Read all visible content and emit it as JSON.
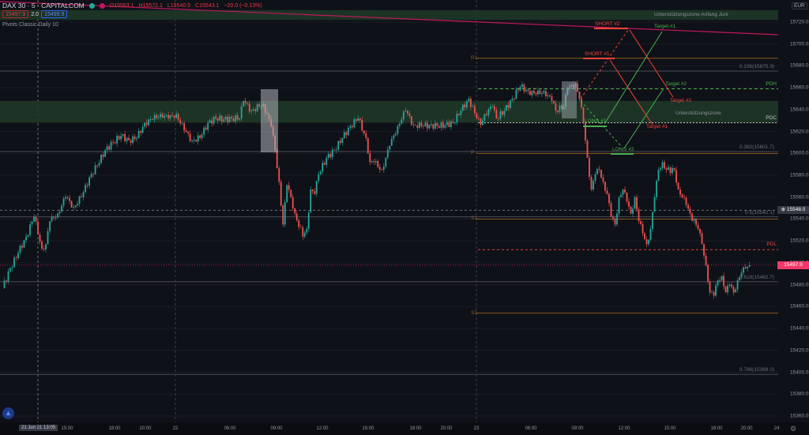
{
  "header": {
    "symbol": "DAX 30 · 5 · CAPITALCOM",
    "open": "O15563.1",
    "high": "H15572.1",
    "low": "L15540.5",
    "close": "C15543.1",
    "change": "−20.0 (−0.13%)",
    "sell_price": "15497.9",
    "spread": "2.0",
    "buy_price": "15499.9",
    "indicator": "Pivots Classic Daily 10",
    "currency": "EUR"
  },
  "colors": {
    "up": "#26a69a",
    "down": "#ef5350",
    "zone": "#1f3a28",
    "pivot": "#8a5a1c",
    "fib": "#4a4d57",
    "trendline": "#c2185b",
    "price": "#f23869",
    "long": "#4caf50",
    "short": "#f44336"
  },
  "chart_data": {
    "type": "candlestick",
    "ylim": [
      15350,
      15740
    ],
    "y_ticks": [
      "15720.0",
      "15700.0",
      "15680.0",
      "15660.0",
      "15640.0",
      "15620.0",
      "15600.0",
      "15580.0",
      "15560.0",
      "15540.0",
      "15520.0",
      "15500.0",
      "15480.0",
      "15460.0",
      "15440.0",
      "15420.0",
      "15400.0",
      "15380.0",
      "15360.0"
    ],
    "x_ticks": [
      "15:00",
      "18:00",
      "20:00",
      "22",
      "06:00",
      "09:00",
      "12:00",
      "15:00",
      "18:00",
      "20:00",
      "23",
      "06:00",
      "09:00",
      "12:00",
      "15:00",
      "18:00",
      "20:00",
      "24"
    ],
    "crosshair": {
      "time": "21 Jun 21  13:05",
      "price": "15548.0"
    },
    "last_price": "15497.9",
    "closes": [
      [
        0,
        15477
      ],
      [
        2,
        15495
      ],
      [
        4,
        15509
      ],
      [
        6,
        15524
      ],
      [
        8,
        15542
      ],
      [
        10,
        15513
      ],
      [
        11,
        15517
      ],
      [
        12,
        15538
      ],
      [
        14,
        15545
      ],
      [
        16,
        15560
      ],
      [
        18,
        15551
      ],
      [
        20,
        15560
      ],
      [
        22,
        15578
      ],
      [
        24,
        15589
      ],
      [
        26,
        15603
      ],
      [
        28,
        15610
      ],
      [
        30,
        15616
      ],
      [
        32,
        15612
      ],
      [
        34,
        15614
      ],
      [
        36,
        15628
      ],
      [
        38,
        15631
      ],
      [
        40,
        15636
      ],
      [
        42,
        15632
      ],
      [
        44,
        15636
      ],
      [
        46,
        15621
      ],
      [
        48,
        15612
      ],
      [
        50,
        15614
      ],
      [
        52,
        15628
      ],
      [
        54,
        15632
      ],
      [
        56,
        15631
      ],
      [
        58,
        15632
      ],
      [
        60,
        15632
      ],
      [
        61,
        15648
      ],
      [
        63,
        15639
      ],
      [
        65,
        15643
      ],
      [
        66,
        15645
      ],
      [
        68,
        15625
      ],
      [
        69,
        15603
      ],
      [
        70,
        15574
      ],
      [
        71,
        15535
      ],
      [
        72,
        15571
      ],
      [
        73,
        15560
      ],
      [
        74,
        15545
      ],
      [
        76,
        15524
      ],
      [
        77,
        15531
      ],
      [
        78,
        15567
      ],
      [
        79,
        15563
      ],
      [
        80,
        15581
      ],
      [
        82,
        15596
      ],
      [
        84,
        15603
      ],
      [
        86,
        15614
      ],
      [
        88,
        15625
      ],
      [
        90,
        15632
      ],
      [
        92,
        15614
      ],
      [
        93,
        15592
      ],
      [
        94,
        15592
      ],
      [
        96,
        15585
      ],
      [
        98,
        15607
      ],
      [
        100,
        15625
      ],
      [
        102,
        15639
      ],
      [
        104,
        15626
      ],
      [
        106,
        15625
      ],
      [
        108,
        15626
      ],
      [
        110,
        15625
      ],
      [
        112,
        15626
      ],
      [
        114,
        15628
      ],
      [
        116,
        15639
      ],
      [
        118,
        15650
      ],
      [
        120,
        15632
      ],
      [
        121,
        15626
      ],
      [
        122,
        15636
      ],
      [
        124,
        15643
      ],
      [
        125,
        15632
      ],
      [
        127,
        15639
      ],
      [
        129,
        15650
      ],
      [
        131,
        15661
      ],
      [
        133,
        15657
      ],
      [
        135,
        15654
      ],
      [
        137,
        15657
      ],
      [
        139,
        15648
      ],
      [
        140,
        15639
      ],
      [
        142,
        15643
      ],
      [
        143,
        15659
      ],
      [
        145,
        15664
      ],
      [
        146,
        15650
      ],
      [
        147,
        15628
      ],
      [
        148,
        15596
      ],
      [
        149,
        15567
      ],
      [
        150,
        15581
      ],
      [
        151,
        15585
      ],
      [
        152,
        15574
      ],
      [
        153,
        15563
      ],
      [
        154,
        15542
      ],
      [
        155,
        15535
      ],
      [
        156,
        15560
      ],
      [
        157,
        15567
      ],
      [
        158,
        15556
      ],
      [
        159,
        15545
      ],
      [
        160,
        15560
      ],
      [
        161,
        15538
      ],
      [
        162,
        15527
      ],
      [
        163,
        15517
      ],
      [
        164,
        15531
      ],
      [
        165,
        15560
      ],
      [
        166,
        15585
      ],
      [
        167,
        15592
      ],
      [
        168,
        15585
      ],
      [
        170,
        15585
      ],
      [
        171,
        15567
      ],
      [
        172,
        15560
      ],
      [
        173,
        15553
      ],
      [
        174,
        15545
      ],
      [
        176,
        15531
      ],
      [
        177,
        15517
      ],
      [
        178,
        15498
      ],
      [
        179,
        15473
      ],
      [
        180,
        15470
      ],
      [
        181,
        15484
      ],
      [
        182,
        15488
      ],
      [
        183,
        15473
      ],
      [
        184,
        15480
      ],
      [
        185,
        15473
      ],
      [
        186,
        15484
      ],
      [
        187,
        15491
      ],
      [
        188,
        15495
      ],
      [
        189,
        15497.9
      ]
    ],
    "pivots": [
      {
        "name": "R1",
        "value": 15687
      },
      {
        "name": "P",
        "value": 15600
      },
      {
        "name": "S1",
        "value": 15540
      },
      {
        "name": "S2",
        "value": 15454
      }
    ],
    "fib": [
      {
        "label": "0.236(15675.3)",
        "value": 15675.3
      },
      {
        "label": "0.382(15601.7)",
        "value": 15601.7
      },
      {
        "label": "0.5(15542.1)",
        "value": 15542.1
      },
      {
        "label": "0.618(15482.7)",
        "value": 15482.7
      },
      {
        "label": "0.786(15398.0)",
        "value": 15398.0
      }
    ],
    "levels": [
      {
        "label": "PDH",
        "value": 15659
      },
      {
        "label": "PDC",
        "value": 15628
      },
      {
        "label": "PDL",
        "value": 15512
      }
    ],
    "zones": [
      {
        "label": "Unterstützungszone Anfang Juni",
        "from": 15722,
        "to": 15731
      },
      {
        "label": "Unterstützungszone",
        "from": 15628,
        "to": 15648
      }
    ],
    "trades": {
      "short1": "SHORT #1",
      "short2": "SHORT #2",
      "long1": "LONG #1",
      "long2": "LONG #2",
      "target1": "Target #1",
      "target2": "Target #2"
    }
  }
}
